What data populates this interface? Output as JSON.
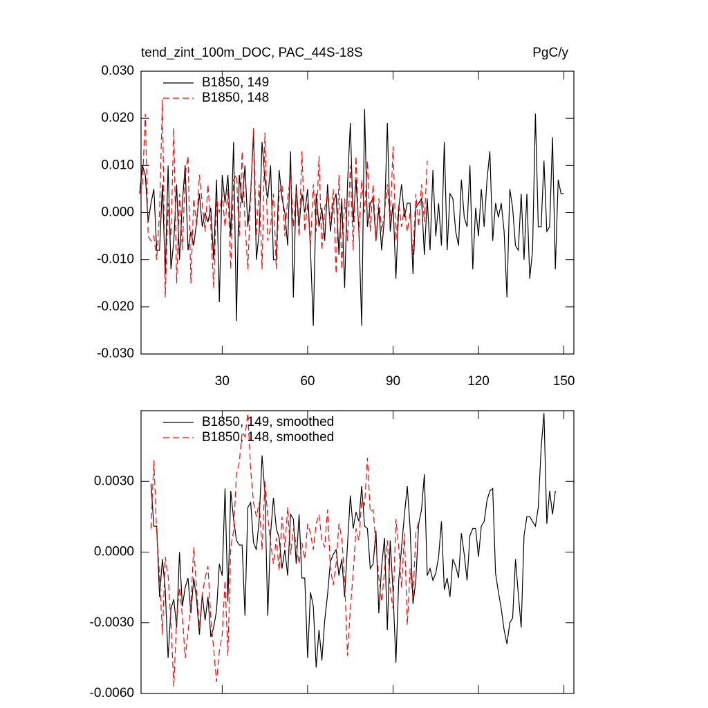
{
  "chart_data": [
    {
      "type": "line",
      "title": "tend_zint_100m_DOC, PAC_44S-18S",
      "units": "PgC/y",
      "legend": "upper left",
      "xtick_labels": true,
      "xlim": [
        1.5,
        153.5
      ],
      "ylim": [
        -0.03,
        0.03
      ],
      "xticks": [
        30,
        60,
        90,
        120,
        150
      ],
      "yticks": [
        {
          "value": -0.03,
          "label": "-0.030"
        },
        {
          "value": -0.02,
          "label": "-0.020"
        },
        {
          "value": -0.01,
          "label": "-0.010"
        },
        {
          "value": 0,
          "label": "0.000"
        },
        {
          "value": 0.01,
          "label": "0.010"
        },
        {
          "value": 0.02,
          "label": "0.020"
        },
        {
          "value": 0.03,
          "label": "0.030"
        }
      ],
      "x": [
        1,
        2,
        3,
        4,
        5,
        6,
        7,
        8,
        9,
        10,
        11,
        12,
        13,
        14,
        15,
        16,
        17,
        18,
        19,
        20,
        21,
        22,
        23,
        24,
        25,
        26,
        27,
        28,
        29,
        30,
        31,
        32,
        33,
        34,
        35,
        36,
        37,
        38,
        39,
        40,
        41,
        42,
        43,
        44,
        45,
        46,
        47,
        48,
        49,
        50,
        51,
        52,
        53,
        54,
        55,
        56,
        57,
        58,
        59,
        60,
        61,
        62,
        63,
        64,
        65,
        66,
        67,
        68,
        69,
        70,
        71,
        72,
        73,
        74,
        75,
        76,
        77,
        78,
        79,
        80,
        81,
        82,
        83,
        84,
        85,
        86,
        87,
        88,
        89,
        90,
        91,
        92,
        93,
        94,
        95,
        96,
        97,
        98,
        99,
        100,
        101,
        102,
        103,
        104,
        105,
        106,
        107,
        108,
        109,
        110,
        111,
        112,
        113,
        114,
        115,
        116,
        117,
        118,
        119,
        120,
        121,
        122,
        123,
        124,
        125,
        126,
        127,
        128,
        129,
        130,
        131,
        132,
        133,
        134,
        135,
        136,
        137,
        138,
        139,
        140,
        141,
        142,
        143,
        144,
        145,
        146,
        147,
        148,
        149,
        150
      ],
      "series": [
        {
          "name": "B1850, 149",
          "color": "#000000",
          "dash": false,
          "values": [
            0.004,
            0.01,
            0.008,
            -0.002,
            0.002,
            0.005,
            -0.008,
            -0.008,
            0.006,
            -0.013,
            0.01,
            -0.012,
            -0.006,
            0.006,
            -0.01,
            0.002,
            0.01,
            -0.008,
            -0.004,
            -0.007,
            -0.002,
            0.004,
            -0.003,
            0.0,
            -0.002,
            0.001,
            -0.01,
            0.007,
            -0.019,
            0.008,
            0.002,
            0.008,
            -0.005,
            0.015,
            -0.023,
            0.008,
            0.002,
            0.01,
            -0.003,
            0.004,
            0.017,
            -0.01,
            -0.004,
            0.015,
            0.007,
            0.003,
            0.01,
            -0.01,
            -0.01,
            0.009,
            0.003,
            0.0,
            -0.007,
            0.013,
            -0.018,
            0.006,
            -0.003,
            0.004,
            0.0,
            0.005,
            -0.008,
            -0.024,
            0.004,
            -0.003,
            0.001,
            -0.006,
            0.006,
            -0.004,
            0.002,
            0.004,
            -0.009,
            0.003,
            -0.016,
            0.006,
            0.019,
            -0.002,
            0.007,
            -0.004,
            -0.024,
            0.022,
            -0.003,
            0.002,
            0.003,
            -0.006,
            0.001,
            -0.008,
            -0.001,
            0.019,
            -0.004,
            0.002,
            -0.014,
            0.001,
            0.006,
            -0.001,
            0.002,
            0.002,
            -0.013,
            0.001,
            0.002,
            0.003,
            -0.009,
            0.003,
            -0.008,
            0.009,
            -0.005,
            0.002,
            -0.007,
            0.015,
            -0.008,
            0.004,
            0.003,
            -0.004,
            -0.007,
            0.007,
            -0.001,
            -0.003,
            0.01,
            -0.012,
            0.001,
            -0.005,
            0.005,
            -0.003,
            0.007,
            0.013,
            -0.006,
            0.002,
            -0.001,
            0.002,
            -0.004,
            -0.018,
            0.005,
            0.001,
            -0.007,
            -0.008,
            0.004,
            -0.01,
            0.004,
            -0.014,
            -0.008,
            0.021,
            -0.003,
            -0.003,
            0.011,
            -0.004,
            -0.003,
            0.016,
            -0.012,
            0.007,
            0.004,
            0.004
          ]
        },
        {
          "name": "B1850, 148",
          "color": "#ff0000",
          "dash": true,
          "values": [
            0.004,
            0.006,
            0.021,
            -0.005,
            -0.006,
            -0.005,
            -0.01,
            0.0,
            0.024,
            -0.018,
            0.002,
            -0.005,
            0.018,
            -0.015,
            0.004,
            -0.008,
            0.008,
            0.012,
            -0.015,
            0.003,
            -0.003,
            0.008,
            0.002,
            -0.004,
            0.006,
            -0.003,
            -0.016,
            0.003,
            0.0,
            0.004,
            -0.003,
            0.005,
            -0.012,
            0.007,
            0.008,
            -0.005,
            0.013,
            -0.002,
            -0.012,
            0.004,
            0.018,
            -0.005,
            0.006,
            -0.012,
            0.017,
            -0.006,
            -0.003,
            0.004,
            -0.012,
            0.004,
            0.006,
            -0.005,
            0.003,
            0.008,
            -0.003,
            0.005,
            -0.005,
            0.013,
            -0.004,
            0.002,
            -0.007,
            0.006,
            -0.004,
            0.012,
            -0.008,
            0.001,
            0.004,
            -0.003,
            0.005,
            -0.013,
            0.008,
            -0.012,
            0.003,
            -0.006,
            0.01,
            -0.008,
            0.012,
            -0.005,
            0.007,
            0.0,
            0.011,
            -0.004,
            0.006,
            -0.006,
            0.003,
            -0.004,
            0.0,
            0.006,
            -0.002,
            0.014,
            -0.006,
            0.002,
            -0.003,
            0.001,
            -0.004,
            0.0,
            -0.009,
            0.004,
            -0.003,
            0.006,
            -0.002,
            0.011,
            null,
            null,
            null,
            null,
            null,
            null,
            null,
            null,
            null,
            null,
            null,
            null,
            null,
            null,
            null,
            null,
            null,
            null,
            null,
            null,
            null,
            null,
            null,
            null,
            null,
            null,
            null,
            null,
            null,
            null,
            null,
            null,
            null,
            null,
            null,
            null,
            null,
            null,
            null,
            null,
            null,
            null,
            null,
            null,
            null,
            null,
            null,
            null
          ]
        }
      ]
    },
    {
      "type": "line",
      "legend": "upper left",
      "xtick_labels": false,
      "xlim": [
        1.5,
        153.5
      ],
      "ylim": [
        -0.006,
        0.006
      ],
      "xticks": [
        30,
        60,
        90,
        120,
        150
      ],
      "yticks": [
        {
          "value": -0.006,
          "label": "-0.0060"
        },
        {
          "value": -0.003,
          "label": "-0.0030"
        },
        {
          "value": 0,
          "label": "0.0000"
        },
        {
          "value": 0.003,
          "label": "0.0030"
        }
      ],
      "x": [
        1,
        2,
        3,
        4,
        5,
        6,
        7,
        8,
        9,
        10,
        11,
        12,
        13,
        14,
        15,
        16,
        17,
        18,
        19,
        20,
        21,
        22,
        23,
        24,
        25,
        26,
        27,
        28,
        29,
        30,
        31,
        32,
        33,
        34,
        35,
        36,
        37,
        38,
        39,
        40,
        41,
        42,
        43,
        44,
        45,
        46,
        47,
        48,
        49,
        50,
        51,
        52,
        53,
        54,
        55,
        56,
        57,
        58,
        59,
        60,
        61,
        62,
        63,
        64,
        65,
        66,
        67,
        68,
        69,
        70,
        71,
        72,
        73,
        74,
        75,
        76,
        77,
        78,
        79,
        80,
        81,
        82,
        83,
        84,
        85,
        86,
        87,
        88,
        89,
        90,
        91,
        92,
        93,
        94,
        95,
        96,
        97,
        98,
        99,
        100,
        101,
        102,
        103,
        104,
        105,
        106,
        107,
        108,
        109,
        110,
        111,
        112,
        113,
        114,
        115,
        116,
        117,
        118,
        119,
        120,
        121,
        122,
        123,
        124,
        125,
        126,
        127,
        128,
        129,
        130,
        131,
        132,
        133,
        134,
        135,
        136,
        137,
        138,
        139,
        140,
        141,
        142,
        143,
        144,
        145,
        146,
        147,
        148,
        149,
        150
      ],
      "series": [
        {
          "name": "B1850, 149, smoothed",
          "color": "#000000",
          "dash": false,
          "values": [
            null,
            null,
            null,
            null,
            0.0029,
            0.0011,
            0.0011,
            -0.0019,
            -0.0003,
            -0.0016,
            -0.0045,
            -0.0024,
            -0.002,
            -0.0032,
            0.0,
            -0.0023,
            -0.0015,
            -0.0011,
            -0.0026,
            -0.0011,
            -0.002,
            -0.0035,
            -0.0018,
            -0.0029,
            -0.0019,
            -0.0036,
            -0.0032,
            -0.0025,
            -0.0005,
            -0.001,
            0.0027,
            -0.0021,
            0.0026,
            0.0014,
            0.0005,
            0.0003,
            0.0003,
            -0.0027,
            0.0019,
            0.0021,
            0.0004,
            0.0001,
            0.0014,
            0.0041,
            0.0025,
            -0.0027,
            0.0008,
            0.0023,
            0.001,
            0.0006,
            -0.0007,
            0.0001,
            -0.001,
            0.0016,
            0.0014,
            -0.0005,
            0.0016,
            -0.0011,
            -0.0011,
            -0.0045,
            -0.0017,
            -0.0023,
            -0.0049,
            -0.0033,
            -0.0046,
            -0.0029,
            -0.0018,
            -0.0004,
            -0.0001,
            0.0001,
            -0.001,
            -0.0003,
            -0.0019,
            0.0003,
            0.0024,
            0.001,
            0.0017,
            0.0013,
            0.0028,
            0.0011,
            0.001,
            -0.0007,
            -0.0005,
            0.0009,
            -0.0026,
            -0.0006,
            0.0006,
            -0.0033,
            0.0005,
            -0.0017,
            -0.0047,
            -0.0012,
            0.0002,
            0.0016,
            0.0028,
            0.001,
            -0.0022,
            -0.0012,
            0.0012,
            0.0018,
            0.0033,
            -0.001,
            -0.0007,
            -0.0012,
            -0.0009,
            -0.0002,
            0.0013,
            -0.0016,
            -0.0011,
            -0.0019,
            -0.0003,
            -0.0006,
            -0.0011,
            0.0008,
            -0.0001,
            -0.0012,
            0.0007,
            0.001,
            0.001,
            -0.0002,
            0.0011,
            0.0013,
            0.0022,
            0.0026,
            0.0027,
            -0.0009,
            -0.0017,
            -0.0024,
            -0.0033,
            -0.0039,
            -0.003,
            -0.0028,
            -0.0003,
            -0.0018,
            -0.0032,
            0.0007,
            0.0015,
            0.0015,
            0.0013,
            0.0011,
            0.0019,
            0.0044,
            0.0059,
            0.0012,
            0.0026,
            0.0016,
            0.0026,
            null,
            null,
            null
          ]
        },
        {
          "name": "B1850, 148, smoothed",
          "color": "#ff0000",
          "dash": true,
          "values": [
            null,
            null,
            null,
            null,
            0.001,
            0.0039,
            0.0008,
            -0.001,
            -0.0035,
            -0.0002,
            -0.001,
            -0.003,
            -0.0057,
            -0.0028,
            -0.0015,
            -0.0027,
            -0.0045,
            -0.0034,
            -0.0022,
            0.0002,
            -0.0016,
            -0.0032,
            -0.0018,
            -0.0011,
            -0.0006,
            -0.0028,
            -0.0041,
            -0.0055,
            -0.0042,
            -0.0035,
            -0.0012,
            -0.0044,
            0.0002,
            0.0009,
            0.0033,
            0.0038,
            0.0051,
            0.0049,
            0.0059,
            0.0035,
            0.0021,
            0.0015,
            0.0021,
            0.0001,
            0.003,
            0.0015,
            0.0004,
            -0.0005,
            0.0006,
            -0.0008,
            0.0015,
            0.0002,
            0.0019,
            -0.0001,
            0.001,
            0.0003,
            -0.0005,
            0.0004,
            -0.0003,
            0.0012,
            0.0008,
            0.0001,
            0.0012,
            0.0016,
            0.0005,
            0.0002,
            0.0018,
            -0.0007,
            -0.0014,
            -0.0005,
            0.0012,
            0.0006,
            -0.0012,
            -0.0044,
            -0.0024,
            -0.0009,
            0.001,
            0.0005,
            0.0022,
            0.002,
            0.004,
            0.0017,
            0.0018,
            0.0003,
            -0.0011,
            -0.0021,
            -0.0008,
            0.0005,
            -0.0016,
            -0.0024,
            0.0014,
            0.0002,
            -0.0015,
            0.0008,
            -0.0031,
            -0.0007,
            -0.002,
            0.0008,
            0.0013,
            null,
            null,
            null,
            null,
            null,
            null,
            null,
            null,
            null,
            null,
            null,
            null,
            null,
            null,
            null,
            null,
            null,
            null,
            null,
            null,
            null,
            null,
            null,
            null,
            null,
            null,
            null,
            null,
            null,
            null,
            null,
            null,
            null,
            null,
            null,
            null,
            null,
            null,
            null,
            null,
            null,
            null,
            null,
            null,
            null,
            null,
            null,
            null,
            null,
            null,
            null
          ]
        }
      ]
    }
  ]
}
